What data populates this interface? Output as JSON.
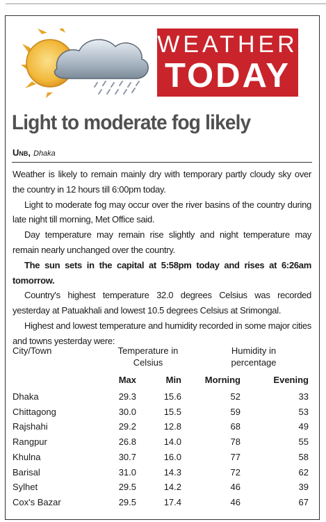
{
  "banner": {
    "line1": "WEATHER",
    "line2": "TODAY",
    "color": "#c9242b"
  },
  "headline": "Light to moderate fog likely",
  "byline": {
    "agency": "Unb,",
    "place": "Dhaka"
  },
  "paragraphs": [
    "Weather is likely to remain mainly dry with temporary partly cloudy sky over the country in 12 hours till 6:00pm today.",
    "Light to moderate fog may occur over the river basins of the country during late night till morning, Met Office said.",
    "Day temperature may remain rise slightly and night temperature may remain nearly unchanged over the country.",
    "The sun sets in the capital at 5:58pm today and rises at 6:26am tomorrow.",
    "Country's highest temperature 32.0 degrees Celsius was recorded yesterday at Patuakhali and lowest 10.5 degrees Celsius at Srimongal.",
    "Highest and lowest temperature and humidity recorded in some major cities and towns yesterday were:"
  ],
  "table": {
    "col_city": "City/Town",
    "col_temp_1": "Temperature in",
    "col_temp_2": "Celsius",
    "col_hum_1": "Humidity in",
    "col_hum_2": "percentage",
    "sub": [
      "Max",
      "Min",
      "Morning",
      "Evening"
    ],
    "rows": [
      [
        "Dhaka",
        "29.3",
        "15.6",
        "52",
        "33"
      ],
      [
        "Chittagong",
        "30.0",
        "15.5",
        "59",
        "53"
      ],
      [
        "Rajshahi",
        "29.2",
        "12.8",
        "68",
        "49"
      ],
      [
        "Rangpur",
        "26.8",
        "14.0",
        "78",
        "55"
      ],
      [
        "Khulna",
        "30.7",
        "16.0",
        "77",
        "58"
      ],
      [
        "Barisal",
        "31.0",
        "14.3",
        "72",
        "62"
      ],
      [
        "Sylhet",
        "29.5",
        "14.2",
        "46",
        "39"
      ],
      [
        "Cox's Bazar",
        "29.5",
        "17.4",
        "46",
        "67"
      ]
    ]
  }
}
